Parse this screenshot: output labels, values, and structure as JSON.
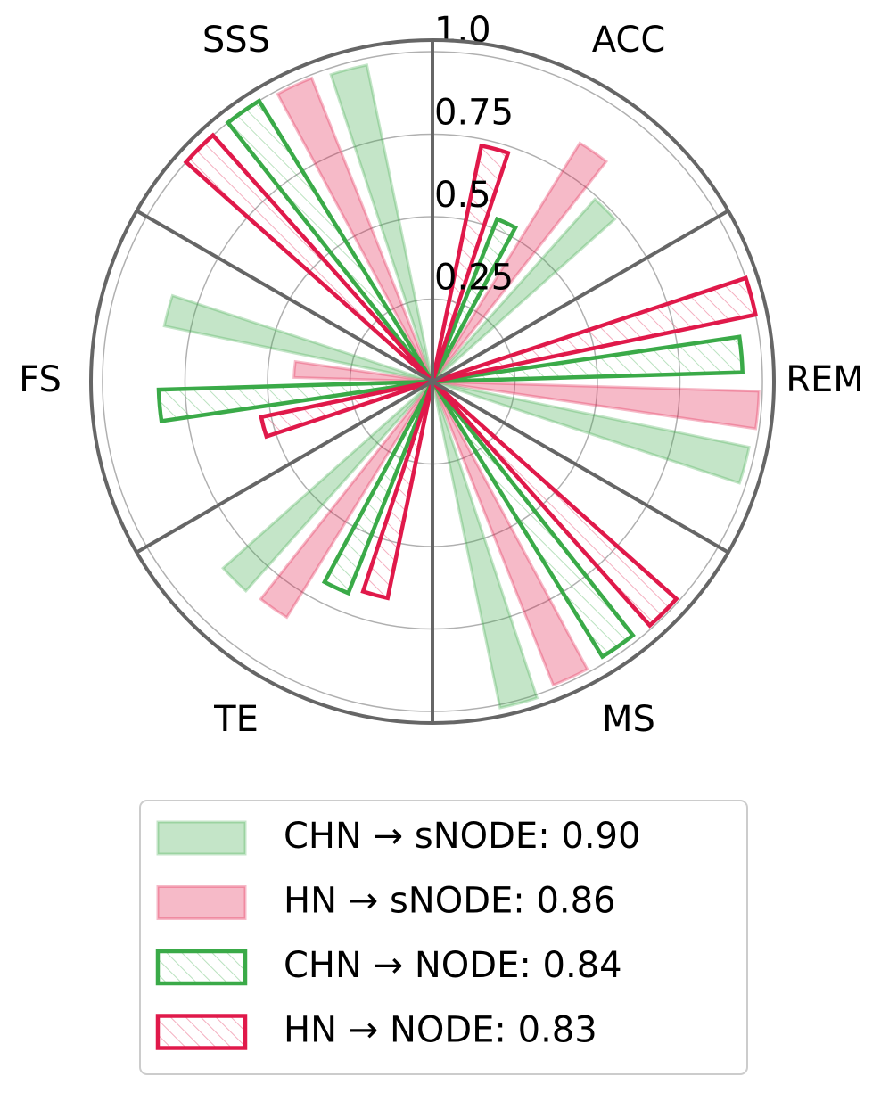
{
  "chart_data": {
    "type": "polar-bar",
    "categories": [
      "ACC",
      "REM",
      "MS",
      "TE",
      "FS",
      "SSS"
    ],
    "series": [
      {
        "name": "CHN → sNODE:  0.90",
        "color": "#3aaa48",
        "hatch": false,
        "values": [
          0.74,
          0.98,
          1.01,
          0.85,
          0.83,
          0.98
        ]
      },
      {
        "name": "HN → sNODE:  0.86",
        "color": "#e0194a",
        "hatch": false,
        "values": [
          0.85,
          0.99,
          0.99,
          0.84,
          0.42,
          0.99
        ]
      },
      {
        "name": "CHN → NODE:  0.84",
        "color": "#3aaa48",
        "hatch": true,
        "values": [
          0.53,
          0.94,
          0.98,
          0.69,
          0.83,
          1.0
        ]
      },
      {
        "name": "HN → NODE:  0.83",
        "color": "#e0194a",
        "hatch": true,
        "values": [
          0.73,
          1.0,
          0.99,
          0.67,
          0.53,
          1.0
        ]
      }
    ],
    "ylim": [
      0,
      1.035
    ],
    "yticks": [
      0.25,
      0.5,
      0.75,
      {
        "value": 1.0,
        "label": "1.0"
      }
    ],
    "grid": true,
    "legend": "below"
  }
}
